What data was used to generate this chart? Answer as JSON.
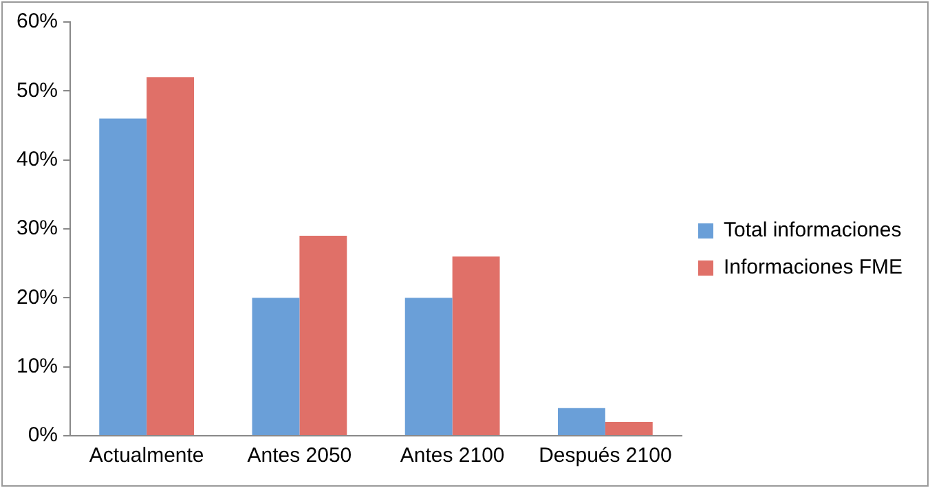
{
  "chart_data": {
    "type": "bar",
    "categories": [
      "Actualmente",
      "Antes 2050",
      "Antes 2100",
      "Después 2100"
    ],
    "series": [
      {
        "name": "Total informaciones",
        "color": "#6a9fd8",
        "values": [
          46,
          20,
          20,
          4
        ]
      },
      {
        "name": "Informaciones FME",
        "color": "#e07068",
        "values": [
          52,
          29,
          26,
          2
        ]
      }
    ],
    "ylim": [
      0,
      60
    ],
    "yticks": [
      {
        "value": 0,
        "label": "0%"
      },
      {
        "value": 10,
        "label": "10%"
      },
      {
        "value": 20,
        "label": "20%"
      },
      {
        "value": 30,
        "label": "30%"
      },
      {
        "value": 40,
        "label": "40%"
      },
      {
        "value": 50,
        "label": "50%"
      },
      {
        "value": 60,
        "label": "60%"
      }
    ],
    "grid": false,
    "legend": "right"
  }
}
